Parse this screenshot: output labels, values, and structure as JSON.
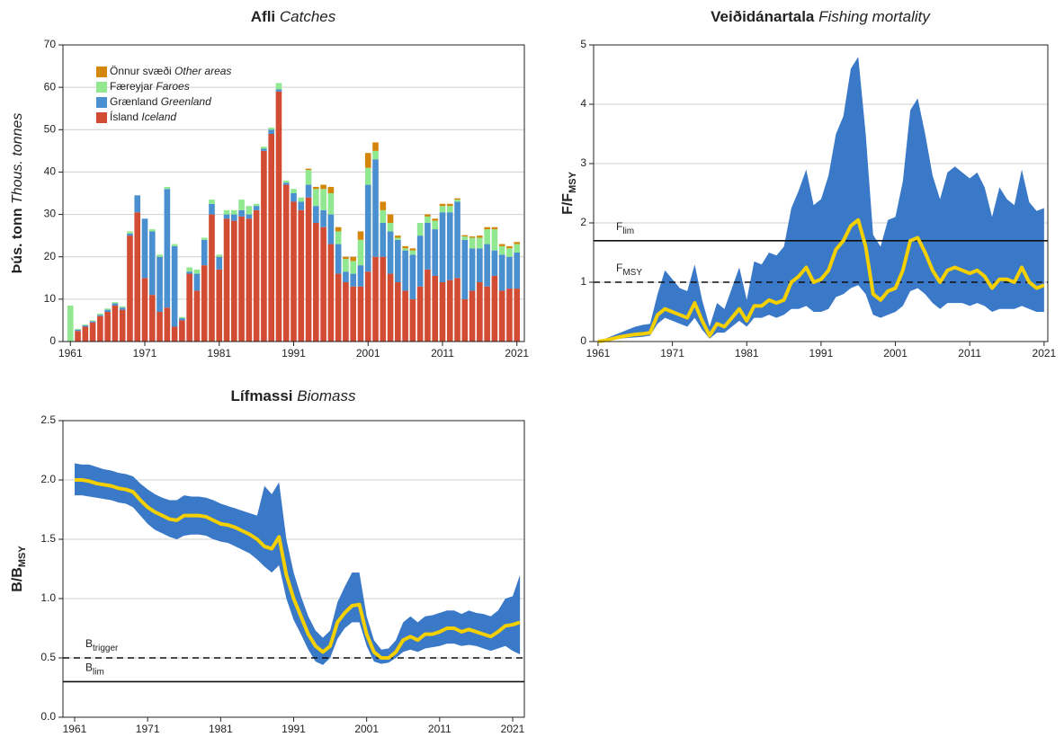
{
  "chart_data": [
    {
      "type": "bar",
      "stacked": true,
      "title": {
        "bold": "Afli",
        "italic": "Catches"
      },
      "y_label": {
        "bold": "Þús. tonn",
        "italic": "Thous. tonnes"
      },
      "x": [
        1961,
        1962,
        1963,
        1964,
        1965,
        1966,
        1967,
        1968,
        1969,
        1970,
        1971,
        1972,
        1973,
        1974,
        1975,
        1976,
        1977,
        1978,
        1979,
        1980,
        1981,
        1982,
        1983,
        1984,
        1985,
        1986,
        1987,
        1988,
        1989,
        1990,
        1991,
        1992,
        1993,
        1994,
        1995,
        1996,
        1997,
        1998,
        1999,
        2000,
        2001,
        2002,
        2003,
        2004,
        2005,
        2006,
        2007,
        2008,
        2009,
        2010,
        2011,
        2012,
        2013,
        2014,
        2015,
        2016,
        2017,
        2018,
        2019,
        2020,
        2021
      ],
      "series": [
        {
          "name": "Ísland",
          "name_en": "Iceland",
          "color": "#d24b33",
          "values": [
            0,
            2.5,
            3.5,
            4.5,
            6,
            7,
            8.5,
            7.5,
            25,
            30.5,
            15,
            11,
            7,
            8,
            3.5,
            5,
            16,
            12,
            18,
            30,
            17,
            29,
            28.5,
            29.5,
            29,
            31,
            45,
            49,
            59,
            37,
            33,
            31,
            34,
            28,
            27,
            23,
            16,
            14,
            13,
            13,
            16.5,
            20,
            20,
            16,
            14,
            12,
            10,
            13,
            17,
            15.5,
            14,
            14.5,
            15,
            10,
            12,
            14,
            13,
            15.5,
            12,
            12.5,
            12.5
          ]
        },
        {
          "name": "Grænland",
          "name_en": "Greenland",
          "color": "#4a8fcf",
          "values": [
            0,
            0.3,
            0.3,
            0.3,
            0.3,
            0.5,
            0.5,
            0.5,
            0.5,
            4,
            14,
            15,
            13,
            28,
            19,
            0.5,
            0.5,
            4,
            6,
            2.5,
            3,
            1,
            1.5,
            1.5,
            1,
            1,
            0.5,
            1,
            0.5,
            0.5,
            2,
            2,
            3,
            4,
            4,
            7,
            7,
            2.5,
            3,
            5,
            20.5,
            23,
            8,
            10,
            10,
            9.5,
            10.5,
            12,
            11,
            11,
            16.5,
            16,
            18,
            14,
            10,
            8,
            10,
            6,
            8.5,
            7.5,
            8.5
          ]
        },
        {
          "name": "Færeyjar",
          "name_en": "Faroes",
          "color": "#90e890",
          "values": [
            8.5,
            0.2,
            0.2,
            0.2,
            0.3,
            0.3,
            0.3,
            0.3,
            0.5,
            0,
            0,
            0.5,
            0.5,
            0.5,
            0.5,
            0.3,
            1,
            1,
            0.5,
            1,
            0.5,
            1,
            1,
            2.5,
            2,
            0.5,
            0.5,
            0.5,
            1.5,
            0.5,
            1,
            1,
            3.5,
            4,
            5,
            5,
            3,
            3,
            3,
            6,
            4,
            2,
            3,
            2,
            0.5,
            0.5,
            1,
            3,
            1.5,
            2,
            1.5,
            1.5,
            0.5,
            0.8,
            2.5,
            2.5,
            3.5,
            5,
            2,
            2,
            2
          ]
        },
        {
          "name": "Önnur svæði",
          "name_en": "Other areas",
          "color": "#d4860b",
          "values": [
            0,
            0,
            0,
            0,
            0,
            0,
            0,
            0,
            0,
            0,
            0,
            0,
            0,
            0,
            0,
            0,
            0,
            0,
            0,
            0,
            0,
            0,
            0,
            0,
            0,
            0,
            0,
            0,
            0,
            0,
            0,
            0,
            0.3,
            0.5,
            1,
            1.5,
            1,
            0.5,
            1,
            2,
            3.5,
            2,
            2,
            2,
            0.5,
            0.5,
            0.5,
            0,
            0.5,
            0.5,
            0.5,
            0.5,
            0.3,
            0.3,
            0.3,
            0.5,
            0.5,
            0.5,
            0.5,
            0.5,
            0.5
          ]
        }
      ],
      "xlim": [
        1960,
        2022
      ],
      "xticks": [
        1961,
        1971,
        1981,
        1991,
        2001,
        2011,
        2021
      ],
      "ylim": [
        0,
        70
      ],
      "yticks": [
        0,
        10,
        20,
        30,
        40,
        50,
        60,
        70
      ],
      "grid": true,
      "legend": "top-left"
    },
    {
      "type": "line",
      "title": {
        "bold": "Veiðidánartala",
        "italic": "Fishing mortality"
      },
      "y_label": {
        "text": "F/F",
        "sub": "MSY"
      },
      "x": [
        1961,
        1962,
        1963,
        1964,
        1965,
        1966,
        1967,
        1968,
        1969,
        1970,
        1971,
        1972,
        1973,
        1974,
        1975,
        1976,
        1977,
        1978,
        1979,
        1980,
        1981,
        1982,
        1983,
        1984,
        1985,
        1986,
        1987,
        1988,
        1989,
        1990,
        1991,
        1992,
        1993,
        1994,
        1995,
        1996,
        1997,
        1998,
        1999,
        2000,
        2001,
        2002,
        2003,
        2004,
        2005,
        2006,
        2007,
        2008,
        2009,
        2010,
        2011,
        2012,
        2013,
        2014,
        2015,
        2016,
        2017,
        2018,
        2019,
        2020,
        2021
      ],
      "line": {
        "color": "#f5d000",
        "values": [
          0,
          0.02,
          0.05,
          0.08,
          0.1,
          0.12,
          0.13,
          0.15,
          0.45,
          0.55,
          0.5,
          0.45,
          0.4,
          0.65,
          0.35,
          0.1,
          0.3,
          0.25,
          0.4,
          0.55,
          0.35,
          0.6,
          0.6,
          0.7,
          0.65,
          0.7,
          1.0,
          1.1,
          1.25,
          1.0,
          1.05,
          1.2,
          1.55,
          1.7,
          1.95,
          2.05,
          1.6,
          0.8,
          0.7,
          0.85,
          0.9,
          1.2,
          1.7,
          1.75,
          1.5,
          1.2,
          1.0,
          1.2,
          1.25,
          1.2,
          1.15,
          1.2,
          1.1,
          0.9,
          1.05,
          1.05,
          1.0,
          1.25,
          1.0,
          0.9,
          0.95
        ]
      },
      "band": {
        "color": "#3a78c8",
        "lower": [
          0,
          0.01,
          0.03,
          0.05,
          0.06,
          0.07,
          0.08,
          0.1,
          0.3,
          0.4,
          0.35,
          0.3,
          0.25,
          0.4,
          0.2,
          0.05,
          0.15,
          0.15,
          0.25,
          0.35,
          0.25,
          0.4,
          0.4,
          0.45,
          0.4,
          0.45,
          0.55,
          0.55,
          0.6,
          0.5,
          0.5,
          0.55,
          0.75,
          0.8,
          0.9,
          0.95,
          0.8,
          0.45,
          0.4,
          0.45,
          0.5,
          0.6,
          0.85,
          0.9,
          0.8,
          0.65,
          0.55,
          0.65,
          0.65,
          0.65,
          0.6,
          0.65,
          0.6,
          0.5,
          0.55,
          0.55,
          0.55,
          0.6,
          0.55,
          0.5,
          0.5
        ],
        "upper": [
          0,
          0.05,
          0.1,
          0.15,
          0.2,
          0.25,
          0.28,
          0.3,
          0.8,
          1.2,
          1.05,
          0.9,
          0.85,
          1.3,
          0.7,
          0.25,
          0.65,
          0.55,
          0.9,
          1.25,
          0.7,
          1.35,
          1.3,
          1.5,
          1.45,
          1.6,
          2.25,
          2.55,
          2.9,
          2.3,
          2.4,
          2.8,
          3.5,
          3.8,
          4.6,
          4.8,
          3.5,
          1.8,
          1.6,
          2.05,
          2.1,
          2.7,
          3.9,
          4.1,
          3.5,
          2.8,
          2.4,
          2.85,
          2.95,
          2.85,
          2.75,
          2.85,
          2.6,
          2.1,
          2.6,
          2.4,
          2.3,
          2.9,
          2.35,
          2.2,
          2.25
        ]
      },
      "hlines": [
        {
          "value": 1.7,
          "style": "solid",
          "label": {
            "text": "F",
            "sub": "lim"
          }
        },
        {
          "value": 1,
          "style": "dashed",
          "label": {
            "text": "F",
            "sub": "MSY"
          }
        }
      ],
      "xlim": [
        1960.4,
        2021.5
      ],
      "xticks": [
        1961,
        1971,
        1981,
        1991,
        2001,
        2011,
        2021
      ],
      "ylim": [
        0,
        5
      ],
      "yticks": [
        0,
        1,
        2,
        3,
        4,
        5
      ],
      "grid": true
    },
    {
      "type": "line",
      "title": {
        "bold": "Lífmassi",
        "italic": "Biomass"
      },
      "y_label": {
        "text": "B/B",
        "sub": "MSY"
      },
      "x": [
        1961,
        1962,
        1963,
        1964,
        1965,
        1966,
        1967,
        1968,
        1969,
        1970,
        1971,
        1972,
        1973,
        1974,
        1975,
        1976,
        1977,
        1978,
        1979,
        1980,
        1981,
        1982,
        1983,
        1984,
        1985,
        1986,
        1987,
        1988,
        1989,
        1990,
        1991,
        1992,
        1993,
        1994,
        1995,
        1996,
        1997,
        1998,
        1999,
        2000,
        2001,
        2002,
        2003,
        2004,
        2005,
        2006,
        2007,
        2008,
        2009,
        2010,
        2011,
        2012,
        2013,
        2014,
        2015,
        2016,
        2017,
        2018,
        2019,
        2020,
        2021,
        2022
      ],
      "line": {
        "color": "#f5d000",
        "values": [
          2.0,
          2.0,
          1.99,
          1.97,
          1.96,
          1.95,
          1.93,
          1.92,
          1.9,
          1.83,
          1.77,
          1.73,
          1.7,
          1.67,
          1.66,
          1.7,
          1.7,
          1.7,
          1.69,
          1.66,
          1.63,
          1.62,
          1.6,
          1.57,
          1.54,
          1.5,
          1.44,
          1.42,
          1.52,
          1.2,
          1.0,
          0.85,
          0.7,
          0.6,
          0.55,
          0.6,
          0.8,
          0.88,
          0.94,
          0.95,
          0.7,
          0.55,
          0.5,
          0.5,
          0.55,
          0.65,
          0.68,
          0.65,
          0.7,
          0.7,
          0.72,
          0.75,
          0.75,
          0.72,
          0.74,
          0.72,
          0.7,
          0.68,
          0.72,
          0.77,
          0.78,
          0.8
        ]
      },
      "band": {
        "color": "#3a78c8",
        "lower": [
          1.87,
          1.87,
          1.86,
          1.85,
          1.84,
          1.83,
          1.81,
          1.8,
          1.77,
          1.7,
          1.63,
          1.58,
          1.55,
          1.52,
          1.5,
          1.53,
          1.54,
          1.54,
          1.53,
          1.5,
          1.48,
          1.47,
          1.44,
          1.41,
          1.38,
          1.33,
          1.27,
          1.22,
          1.28,
          1.0,
          0.82,
          0.7,
          0.57,
          0.47,
          0.44,
          0.5,
          0.66,
          0.75,
          0.8,
          0.8,
          0.6,
          0.47,
          0.45,
          0.46,
          0.5,
          0.55,
          0.57,
          0.55,
          0.58,
          0.59,
          0.6,
          0.62,
          0.62,
          0.6,
          0.61,
          0.6,
          0.58,
          0.56,
          0.58,
          0.6,
          0.56,
          0.53
        ],
        "upper": [
          2.14,
          2.13,
          2.13,
          2.11,
          2.09,
          2.08,
          2.06,
          2.05,
          2.03,
          1.97,
          1.92,
          1.88,
          1.85,
          1.83,
          1.83,
          1.87,
          1.86,
          1.86,
          1.85,
          1.83,
          1.8,
          1.78,
          1.76,
          1.74,
          1.72,
          1.7,
          1.95,
          1.88,
          1.98,
          1.5,
          1.22,
          1.02,
          0.85,
          0.73,
          0.67,
          0.73,
          0.97,
          1.1,
          1.22,
          1.22,
          0.85,
          0.65,
          0.57,
          0.58,
          0.65,
          0.8,
          0.85,
          0.8,
          0.85,
          0.86,
          0.88,
          0.9,
          0.9,
          0.87,
          0.9,
          0.88,
          0.87,
          0.85,
          0.9,
          1.0,
          1.02,
          1.2
        ]
      },
      "hlines": [
        {
          "value": 0.5,
          "style": "dashed",
          "label": {
            "text": "B",
            "sub": "trigger"
          }
        },
        {
          "value": 0.3,
          "style": "solid",
          "label": {
            "text": "B",
            "sub": "lim"
          }
        }
      ],
      "xlim": [
        1959.4,
        2022.6
      ],
      "xticks": [
        1961,
        1971,
        1981,
        1991,
        2001,
        2011,
        2021
      ],
      "ylim": [
        0,
        2.5
      ],
      "yticks": [
        {
          "value": 0,
          "label": "0.0"
        },
        0.5,
        {
          "value": 1,
          "label": "1.0"
        },
        1.5,
        {
          "value": 2,
          "label": "2.0"
        },
        2.5
      ],
      "grid": true
    }
  ]
}
